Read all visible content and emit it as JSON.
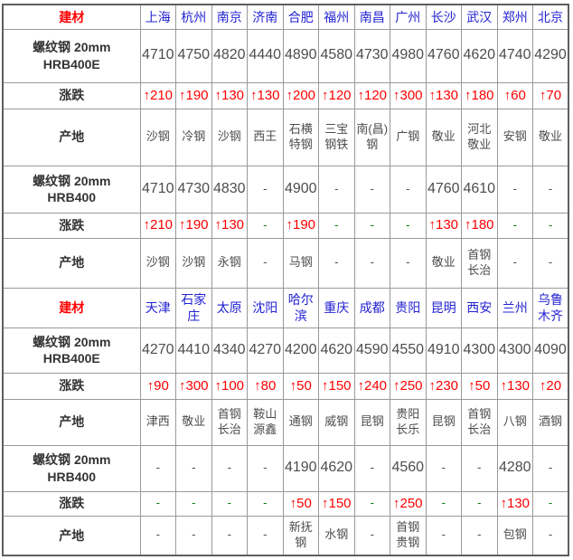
{
  "colors": {
    "header_label_red": "#fe0000",
    "city_blue": "#2323d3",
    "value_gray": "#4d4d4d",
    "change_red": "#fe0000",
    "no_change_green": "#008000",
    "row_label_dark": "#333333",
    "cell_border": "#999999",
    "outer_border": "#5e5e5e"
  },
  "chart_data": {
    "type": "table",
    "title": "",
    "corner_label": "建材",
    "row_types_legend": [
      "price",
      "change",
      "origin"
    ],
    "sections": [
      {
        "header_label": "建材",
        "cities": [
          "上海",
          "杭州",
          "南京",
          "济南",
          "合肥",
          "福州",
          "南昌",
          "广州",
          "长沙",
          "武汉",
          "郑州",
          "北京"
        ],
        "rows": [
          {
            "label": "螺纹钢 20mm\nHRB400E",
            "type": "price",
            "values": [
              "4710",
              "4750",
              "4820",
              "4440",
              "4890",
              "4580",
              "4730",
              "4980",
              "4760",
              "4620",
              "4740",
              "4290"
            ]
          },
          {
            "label": "涨跌",
            "type": "change",
            "values": [
              "↑210",
              "↑190",
              "↑130",
              "↑130",
              "↑200",
              "↑120",
              "↑120",
              "↑300",
              "↑130",
              "↑180",
              "↑60",
              "↑70"
            ]
          },
          {
            "label": "产地",
            "type": "origin",
            "values": [
              "沙钢",
              "冷钢",
              "沙钢",
              "西王",
              "石横特钢",
              "三宝钢铁",
              "南(昌)钢",
              "广钢",
              "敬业",
              "河北敬业",
              "安钢",
              "敬业"
            ]
          },
          {
            "label": "螺纹钢 20mm\nHRB400",
            "type": "price",
            "values": [
              "4710",
              "4730",
              "4830",
              "-",
              "4900",
              "-",
              "-",
              "-",
              "4760",
              "4610",
              "-",
              "-"
            ]
          },
          {
            "label": "涨跌",
            "type": "change",
            "values": [
              "↑210",
              "↑190",
              "↑130",
              "-",
              "↑190",
              "-",
              "-",
              "-",
              "↑130",
              "↑180",
              "-",
              "-"
            ]
          },
          {
            "label": "产地",
            "type": "origin",
            "values": [
              "沙钢",
              "沙钢",
              "永钢",
              "-",
              "马钢",
              "-",
              "-",
              "-",
              "敬业",
              "首钢长治",
              "-",
              "-"
            ]
          }
        ]
      },
      {
        "header_label": "建材",
        "cities": [
          "天津",
          "石家庄",
          "太原",
          "沈阳",
          "哈尔滨",
          "重庆",
          "成都",
          "贵阳",
          "昆明",
          "西安",
          "兰州",
          "乌鲁木齐"
        ],
        "rows": [
          {
            "label": "螺纹钢 20mm\nHRB400E",
            "type": "price",
            "values": [
              "4270",
              "4410",
              "4340",
              "4270",
              "4200",
              "4620",
              "4590",
              "4550",
              "4910",
              "4300",
              "4300",
              "4090"
            ]
          },
          {
            "label": "涨跌",
            "type": "change",
            "values": [
              "↑90",
              "↑300",
              "↑100",
              "↑80",
              "↑50",
              "↑150",
              "↑240",
              "↑250",
              "↑230",
              "↑50",
              "↑130",
              "↑20"
            ]
          },
          {
            "label": "产地",
            "type": "origin",
            "values": [
              "津西",
              "敬业",
              "首钢长治",
              "鞍山源鑫",
              "通钢",
              "威钢",
              "昆钢",
              "贵阳长乐",
              "昆钢",
              "首钢长治",
              "八钢",
              "酒钢"
            ]
          },
          {
            "label": "螺纹钢 20mm\nHRB400",
            "type": "price",
            "values": [
              "-",
              "-",
              "-",
              "-",
              "4190",
              "4620",
              "-",
              "4560",
              "-",
              "-",
              "4280",
              "-"
            ]
          },
          {
            "label": "涨跌",
            "type": "change",
            "values": [
              "-",
              "-",
              "-",
              "-",
              "↑50",
              "↑150",
              "-",
              "↑250",
              "-",
              "-",
              "↑130",
              "-"
            ]
          },
          {
            "label": "产地",
            "type": "origin",
            "values": [
              "-",
              "-",
              "-",
              "-",
              "新抚钢",
              "水钢",
              "-",
              "首钢贵钢",
              "-",
              "-",
              "包钢",
              "-"
            ]
          }
        ]
      }
    ]
  }
}
